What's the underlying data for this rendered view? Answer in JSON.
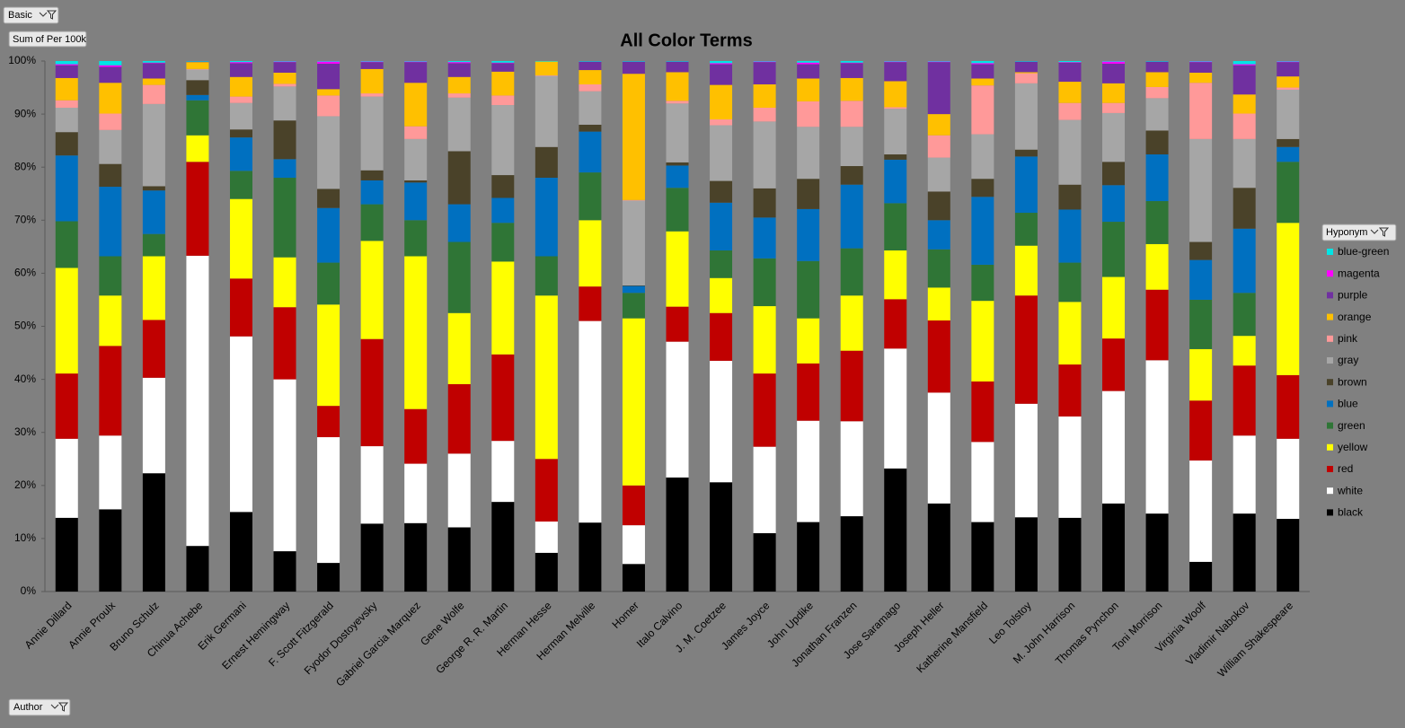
{
  "pivot_fields": {
    "report_filter": "Basic",
    "values_field": "Sum of Per 100k",
    "axis_field": "Author",
    "legend_field": "Hyponym"
  },
  "chart_data": {
    "type": "stacked_bar_100",
    "title": "All Color Terms",
    "categories": [
      "Annie Dillard",
      "Annie Proulx",
      "Bruno Schulz",
      "Chinua Achebe",
      "Erik Germani",
      "Ernest Hemingway",
      "F. Scott Fitzgerald",
      "Fyodor Dostoyevsky",
      "Gabriel Garcia Marquez",
      "Gene Wolfe",
      "George R. R. Martin",
      "Herman Hesse",
      "Herman Melville",
      "Homer",
      "Italo Calvino",
      "J. M. Coetzee",
      "James Joyce",
      "John Updike",
      "Jonathan Franzen",
      "Jose Saramago",
      "Joseph Heller",
      "Katherine Mansfield",
      "Leo Tolstoy",
      "M. John Harrison",
      "Thomas Pynchon",
      "Toni Morrison",
      "Virginia Woolf",
      "Vladimir Nabokov",
      "William Shakespeare"
    ],
    "series": [
      {
        "name": "black",
        "color": "#000000",
        "values": [
          13.9,
          15.5,
          22.3,
          8.6,
          15.0,
          7.6,
          5.4,
          12.8,
          12.9,
          12.1,
          16.9,
          7.3,
          13.0,
          5.2,
          21.5,
          20.6,
          11.0,
          13.1,
          14.2,
          23.2,
          16.6,
          13.1,
          14.0,
          13.9,
          16.6,
          14.7,
          5.6,
          14.7,
          13.7
        ]
      },
      {
        "name": "white",
        "color": "#ffffff",
        "values": [
          14.9,
          13.9,
          18.0,
          54.7,
          33.1,
          32.4,
          23.7,
          14.6,
          11.2,
          13.9,
          11.5,
          5.9,
          38.0,
          7.3,
          25.6,
          22.9,
          16.3,
          19.1,
          17.9,
          22.6,
          20.9,
          15.1,
          21.4,
          19.1,
          21.2,
          28.9,
          19.1,
          14.7,
          15.1
        ]
      },
      {
        "name": "red",
        "color": "#c00000",
        "values": [
          12.3,
          16.9,
          10.9,
          17.7,
          10.9,
          13.6,
          5.9,
          20.2,
          10.3,
          13.1,
          16.3,
          11.8,
          6.5,
          7.5,
          6.6,
          9.0,
          13.8,
          10.8,
          13.3,
          9.3,
          13.6,
          11.4,
          20.4,
          9.8,
          9.9,
          13.3,
          11.3,
          13.2,
          12.0
        ]
      },
      {
        "name": "yellow",
        "color": "#ffff00",
        "values": [
          19.9,
          9.5,
          12.0,
          5.0,
          15.0,
          9.4,
          19.1,
          18.5,
          28.8,
          13.4,
          17.5,
          30.8,
          12.5,
          31.5,
          14.2,
          6.6,
          12.7,
          8.5,
          10.4,
          9.2,
          6.2,
          15.2,
          9.4,
          11.8,
          11.6,
          8.6,
          9.7,
          5.6,
          28.7
        ]
      },
      {
        "name": "green",
        "color": "#2f7536",
        "values": [
          8.8,
          7.4,
          4.2,
          6.6,
          5.3,
          15.0,
          7.9,
          6.9,
          6.8,
          13.4,
          7.3,
          7.4,
          9.0,
          4.8,
          8.2,
          5.2,
          9.0,
          10.8,
          8.9,
          8.9,
          7.2,
          6.8,
          6.2,
          7.4,
          10.4,
          8.1,
          9.3,
          8.1,
          11.5
        ]
      },
      {
        "name": "blue",
        "color": "#0070c0",
        "values": [
          12.4,
          13.1,
          8.2,
          1.0,
          6.3,
          3.5,
          10.3,
          4.5,
          7.1,
          7.1,
          4.7,
          14.8,
          7.7,
          1.3,
          4.2,
          9.0,
          7.7,
          9.8,
          12.0,
          8.2,
          5.5,
          12.8,
          10.6,
          10.0,
          6.9,
          8.8,
          7.5,
          12.1,
          2.8
        ]
      },
      {
        "name": "brown",
        "color": "#4a4229",
        "values": [
          4.4,
          4.3,
          0.8,
          2.8,
          1.5,
          7.3,
          3.6,
          1.9,
          0.4,
          10.0,
          4.3,
          5.8,
          1.3,
          0.1,
          0.6,
          4.1,
          5.5,
          5.7,
          3.5,
          1.0,
          5.4,
          3.4,
          1.3,
          4.7,
          4.4,
          4.5,
          3.4,
          7.7,
          1.5
        ]
      },
      {
        "name": "gray",
        "color": "#a6a6a6",
        "values": [
          4.6,
          6.4,
          15.5,
          2.0,
          5.0,
          6.4,
          13.7,
          13.9,
          7.8,
          10.1,
          13.2,
          13.4,
          6.3,
          16.0,
          11.1,
          10.5,
          12.6,
          9.8,
          7.4,
          8.6,
          6.4,
          8.4,
          12.5,
          12.2,
          9.2,
          6.1,
          19.4,
          9.2,
          9.3
        ]
      },
      {
        "name": "pink",
        "color": "#ff9999",
        "values": [
          1.4,
          3.1,
          3.6,
          0.1,
          1.2,
          0.5,
          3.9,
          0.6,
          2.4,
          0.8,
          1.8,
          0.1,
          1.3,
          0.1,
          0.5,
          1.1,
          2.6,
          4.8,
          4.9,
          0.3,
          4.2,
          9.2,
          1.9,
          3.2,
          1.9,
          2.1,
          10.6,
          4.8,
          0.4
        ]
      },
      {
        "name": "orange",
        "color": "#ffc000",
        "values": [
          4.2,
          5.8,
          1.2,
          1.3,
          3.7,
          2.1,
          1.2,
          4.6,
          8.2,
          3.1,
          4.5,
          2.6,
          2.7,
          23.8,
          5.4,
          6.5,
          4.4,
          4.3,
          4.3,
          4.9,
          4.0,
          1.3,
          0.2,
          4.0,
          3.7,
          2.8,
          1.9,
          3.6,
          2.1
        ]
      },
      {
        "name": "purple",
        "color": "#7030a0",
        "values": [
          2.4,
          3.0,
          2.9,
          0.1,
          2.6,
          2.0,
          4.8,
          1.3,
          3.9,
          2.6,
          1.6,
          0,
          1.6,
          2.3,
          2.0,
          3.9,
          4.2,
          2.7,
          2.8,
          3.6,
          9.8,
          2.7,
          2.0,
          3.6,
          3.7,
          2.0,
          2.0,
          5.5,
          2.7
        ]
      },
      {
        "name": "magenta",
        "color": "#ff00ff",
        "values": [
          0.2,
          0.3,
          0.1,
          0,
          0.2,
          0.1,
          0.4,
          0.1,
          0.1,
          0.2,
          0.1,
          0,
          0,
          0,
          0,
          0.2,
          0.1,
          0.3,
          0.1,
          0.1,
          0.1,
          0.2,
          0,
          0.1,
          0.4,
          0,
          0.1,
          0.2,
          0.1
        ]
      },
      {
        "name": "blue-green",
        "color": "#00e5e5",
        "values": [
          0.6,
          0.8,
          0.3,
          0.1,
          0.2,
          0.1,
          0.1,
          0.1,
          0.1,
          0.2,
          0.3,
          0.1,
          0.1,
          0.1,
          0.1,
          0.4,
          0.1,
          0.3,
          0.3,
          0.1,
          0.1,
          0.4,
          0.1,
          0.2,
          0.1,
          0.1,
          0.1,
          0.6,
          0.1
        ]
      }
    ],
    "ylim": [
      0,
      100
    ],
    "yticks": [
      {
        "value": 0,
        "label": "0%"
      },
      {
        "value": 10,
        "label": "10%"
      },
      {
        "value": 20,
        "label": "20%"
      },
      {
        "value": 30,
        "label": "30%"
      },
      {
        "value": 40,
        "label": "40%"
      },
      {
        "value": 50,
        "label": "50%"
      },
      {
        "value": 60,
        "label": "60%"
      },
      {
        "value": 70,
        "label": "70%"
      },
      {
        "value": 80,
        "label": "80%"
      },
      {
        "value": 90,
        "label": "90%"
      },
      {
        "value": 100,
        "label": "100%"
      }
    ],
    "grid": false,
    "legend_position": "right"
  }
}
